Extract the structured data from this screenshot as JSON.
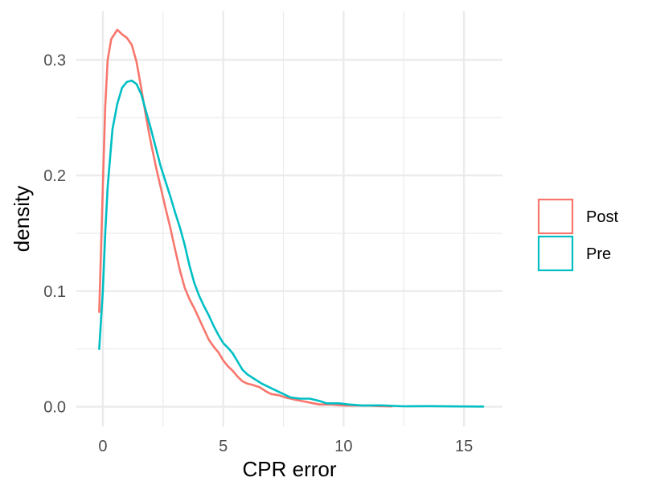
{
  "chart_data": {
    "type": "line",
    "title": "",
    "xlabel": "CPR error",
    "ylabel": "density",
    "xlim": [
      -1.1,
      16.6
    ],
    "ylim": [
      -0.017,
      0.342
    ],
    "x_ticks": [
      0,
      5,
      10,
      15
    ],
    "x_tick_labels": [
      "0",
      "5",
      "10",
      "15"
    ],
    "y_ticks": [
      0.0,
      0.1,
      0.2,
      0.3
    ],
    "y_tick_labels": [
      "0.0",
      "0.1",
      "0.2",
      "0.3"
    ],
    "grid": true,
    "legend": {
      "position": "right",
      "items": [
        "Post",
        "Pre"
      ]
    },
    "series": [
      {
        "name": "Post",
        "color": "#F8766D",
        "points": [
          [
            -0.15,
            0.082
          ],
          [
            0.0,
            0.19
          ],
          [
            0.1,
            0.26
          ],
          [
            0.2,
            0.3
          ],
          [
            0.35,
            0.318
          ],
          [
            0.6,
            0.326
          ],
          [
            0.8,
            0.322
          ],
          [
            1.0,
            0.319
          ],
          [
            1.2,
            0.313
          ],
          [
            1.4,
            0.298
          ],
          [
            1.6,
            0.275
          ],
          [
            1.8,
            0.25
          ],
          [
            2.0,
            0.228
          ],
          [
            2.2,
            0.208
          ],
          [
            2.4,
            0.19
          ],
          [
            2.6,
            0.172
          ],
          [
            2.8,
            0.155
          ],
          [
            3.0,
            0.136
          ],
          [
            3.2,
            0.118
          ],
          [
            3.4,
            0.103
          ],
          [
            3.6,
            0.093
          ],
          [
            3.8,
            0.085
          ],
          [
            4.0,
            0.076
          ],
          [
            4.2,
            0.067
          ],
          [
            4.4,
            0.058
          ],
          [
            4.6,
            0.052
          ],
          [
            4.8,
            0.047
          ],
          [
            5.0,
            0.04
          ],
          [
            5.2,
            0.035
          ],
          [
            5.4,
            0.031
          ],
          [
            5.6,
            0.026
          ],
          [
            5.8,
            0.022
          ],
          [
            6.0,
            0.02
          ],
          [
            6.2,
            0.019
          ],
          [
            6.5,
            0.017
          ],
          [
            6.8,
            0.013
          ],
          [
            7.0,
            0.011
          ],
          [
            7.3,
            0.01
          ],
          [
            7.6,
            0.008
          ],
          [
            8.0,
            0.006
          ],
          [
            8.5,
            0.004
          ],
          [
            9.0,
            0.002
          ],
          [
            9.5,
            0.002
          ],
          [
            10.0,
            0.001
          ],
          [
            10.5,
            0.001
          ],
          [
            11.0,
            0.001
          ],
          [
            11.5,
            0.0005
          ],
          [
            12.0,
            0.0003
          ]
        ]
      },
      {
        "name": "Pre",
        "color": "#00BFC4",
        "points": [
          [
            -0.15,
            0.05
          ],
          [
            0.0,
            0.1
          ],
          [
            0.1,
            0.15
          ],
          [
            0.2,
            0.19
          ],
          [
            0.3,
            0.215
          ],
          [
            0.4,
            0.24
          ],
          [
            0.6,
            0.262
          ],
          [
            0.8,
            0.276
          ],
          [
            1.0,
            0.281
          ],
          [
            1.2,
            0.282
          ],
          [
            1.4,
            0.279
          ],
          [
            1.6,
            0.27
          ],
          [
            1.8,
            0.255
          ],
          [
            2.0,
            0.24
          ],
          [
            2.2,
            0.224
          ],
          [
            2.4,
            0.208
          ],
          [
            2.6,
            0.195
          ],
          [
            2.8,
            0.182
          ],
          [
            3.0,
            0.168
          ],
          [
            3.2,
            0.155
          ],
          [
            3.4,
            0.14
          ],
          [
            3.6,
            0.122
          ],
          [
            3.8,
            0.107
          ],
          [
            4.0,
            0.096
          ],
          [
            4.2,
            0.087
          ],
          [
            4.4,
            0.079
          ],
          [
            4.6,
            0.07
          ],
          [
            4.8,
            0.062
          ],
          [
            5.0,
            0.055
          ],
          [
            5.2,
            0.051
          ],
          [
            5.4,
            0.046
          ],
          [
            5.6,
            0.039
          ],
          [
            5.8,
            0.032
          ],
          [
            6.0,
            0.028
          ],
          [
            6.3,
            0.024
          ],
          [
            6.6,
            0.02
          ],
          [
            7.0,
            0.016
          ],
          [
            7.4,
            0.012
          ],
          [
            7.8,
            0.008
          ],
          [
            8.2,
            0.007
          ],
          [
            8.6,
            0.007
          ],
          [
            9.0,
            0.005
          ],
          [
            9.3,
            0.003
          ],
          [
            9.8,
            0.003
          ],
          [
            10.2,
            0.002
          ],
          [
            10.8,
            0.001
          ],
          [
            11.5,
            0.0012
          ],
          [
            12.5,
            0.0004
          ],
          [
            13.5,
            0.0005
          ],
          [
            14.5,
            0.0003
          ],
          [
            15.8,
            0.0002
          ]
        ]
      }
    ]
  }
}
